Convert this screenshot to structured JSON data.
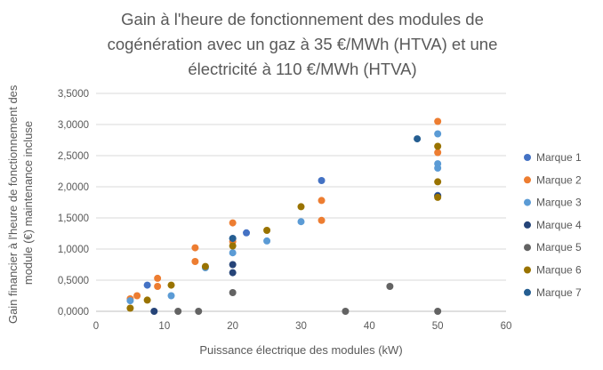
{
  "chart_data": {
    "type": "scatter",
    "title": "Gain à l'heure de fonctionnement des modules de cogénération avec un gaz à 35 €/MWh (HTVA) et une électricité à 110 €/MWh (HTVA)",
    "title_lines": [
      "Gain à l'heure de fonctionnement des modules de",
      "cogénération avec un gaz à 35 €/MWh (HTVA) et une",
      "électricité à 110 €/MWh (HTVA)"
    ],
    "xlabel": "Puissance électrique des modules (kW)",
    "ylabel": "Gain financier à l'heure de fonctionnement des module (€) maintenance incluse",
    "ylabel_lines": [
      "Gain financier à l'heure de fonctionnement des",
      "module (€) maintenance incluse"
    ],
    "xlim": [
      0,
      60
    ],
    "ylim": [
      0,
      3.5
    ],
    "x_ticks": [
      0,
      10,
      20,
      30,
      40,
      50,
      60
    ],
    "y_ticks": [
      0,
      0.5,
      1,
      1.5,
      2,
      2.5,
      3,
      3.5
    ],
    "x_tick_labels": [
      "0",
      "10",
      "20",
      "30",
      "40",
      "50",
      "60"
    ],
    "y_tick_labels": [
      "0,0000",
      "0,5000",
      "1,0000",
      "1,5000",
      "2,0000",
      "2,5000",
      "3,0000",
      "3,5000"
    ],
    "grid": "horizontal",
    "legend_position": "right",
    "series": [
      {
        "name": "Marque 1",
        "color": "#4472C4",
        "points": [
          [
            7.5,
            0.42
          ],
          [
            20,
            1.17
          ],
          [
            22,
            1.26
          ],
          [
            33,
            2.1
          ],
          [
            50,
            1.86
          ]
        ]
      },
      {
        "name": "Marque 2",
        "color": "#ED7D31",
        "points": [
          [
            5,
            0.2
          ],
          [
            6,
            0.25
          ],
          [
            9,
            0.53
          ],
          [
            9,
            0.4
          ],
          [
            14.5,
            1.02
          ],
          [
            14.5,
            0.8
          ],
          [
            20,
            1.42
          ],
          [
            20,
            1.12
          ],
          [
            33,
            1.78
          ],
          [
            33,
            1.46
          ],
          [
            50,
            3.05
          ],
          [
            50,
            2.55
          ]
        ]
      },
      {
        "name": "Marque 3",
        "color": "#5B9BD5",
        "points": [
          [
            5,
            0.17
          ],
          [
            11,
            0.25
          ],
          [
            16,
            0.7
          ],
          [
            20,
            0.94
          ],
          [
            25,
            1.13
          ],
          [
            30,
            1.44
          ],
          [
            50,
            2.85
          ],
          [
            50,
            2.37
          ],
          [
            50,
            2.3
          ]
        ]
      },
      {
        "name": "Marque 4",
        "color": "#264478",
        "points": [
          [
            8.5,
            0.0
          ],
          [
            20,
            0.75
          ],
          [
            20,
            0.62
          ],
          [
            50,
            1.85
          ]
        ]
      },
      {
        "name": "Marque 5",
        "color": "#636363",
        "points": [
          [
            12,
            0.0
          ],
          [
            15,
            0.0
          ],
          [
            20,
            0.3
          ],
          [
            36.5,
            0.0
          ],
          [
            43,
            0.4
          ],
          [
            50,
            0.0
          ]
        ]
      },
      {
        "name": "Marque 6",
        "color": "#997300",
        "points": [
          [
            5,
            0.05
          ],
          [
            7.5,
            0.18
          ],
          [
            11,
            0.42
          ],
          [
            16,
            0.72
          ],
          [
            20,
            1.05
          ],
          [
            25,
            1.3
          ],
          [
            30,
            1.68
          ],
          [
            50,
            2.65
          ],
          [
            50,
            2.08
          ],
          [
            50,
            1.83
          ]
        ]
      },
      {
        "name": "Marque 7",
        "color": "#255E91",
        "points": [
          [
            47,
            2.77
          ],
          [
            20,
            1.17
          ]
        ]
      }
    ]
  }
}
